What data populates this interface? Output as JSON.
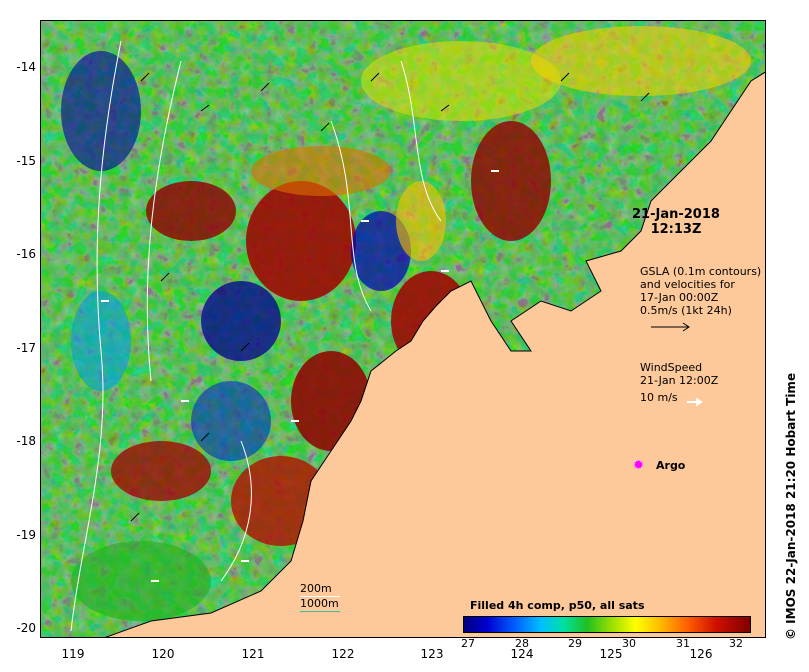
{
  "map": {
    "lon_ticks": [
      "119",
      "120",
      "121",
      "122",
      "123",
      "124",
      "125",
      "126"
    ],
    "lat_ticks": [
      "-14",
      "-15",
      "-16",
      "-17",
      "-18",
      "-19",
      "-20"
    ],
    "land_color": "#fdc89a",
    "coast_color": "#000000"
  },
  "title": {
    "date": "21-Jan-2018",
    "time": "12:13Z"
  },
  "gsla": {
    "line1": "GSLA (0.1m contours)",
    "line2": "and velocities for",
    "line3": "17-Jan 00:00Z",
    "line4": "0.5m/s (1kt 24h)"
  },
  "wind": {
    "line1": "WindSpeed",
    "line2": "21-Jan 12:00Z",
    "line3": "10 m/s"
  },
  "argo": {
    "label": "Argo",
    "color": "#ff00ff"
  },
  "scale": {
    "line1": "200m",
    "line2": "1000m",
    "color1": "#ffffff",
    "color2": "#40c0a0"
  },
  "colorbar": {
    "title": "Filled 4h comp, p50, all sats",
    "ticks": [
      "27",
      "28",
      "29",
      "30",
      "31",
      "32"
    ]
  },
  "credit": "IMOS 22-Jan-2018 21:20 Hobart Time"
}
